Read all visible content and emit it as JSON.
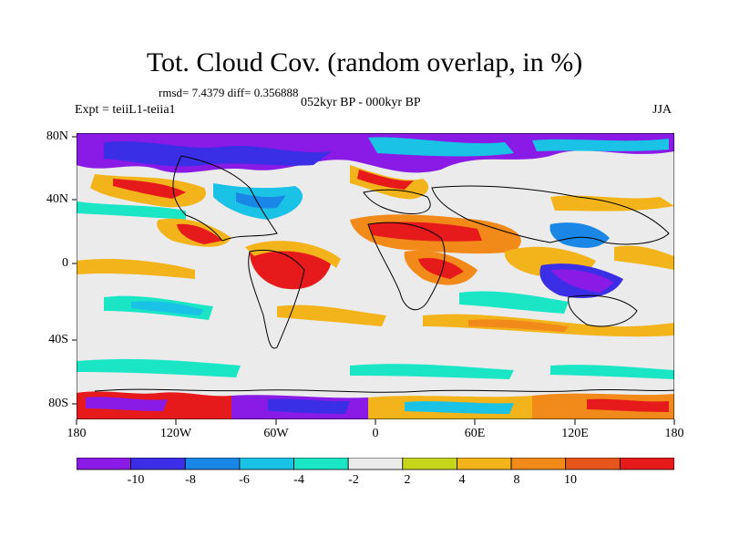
{
  "title": "Tot. Cloud Cov. (random overlap, in %)",
  "stats": "rmsd= 7.4379 diff= 0.356888",
  "experiment": "Expt = teiiL1-teiia1",
  "period": "052kyr BP - 000kyr BP",
  "season": "JJA",
  "axes": {
    "x_ticks": [
      "180",
      "120W",
      "60W",
      "0",
      "60E",
      "120E",
      "180"
    ],
    "y_ticks": [
      "80N",
      "40N",
      "0",
      "40S",
      "80S"
    ]
  },
  "colorbar": {
    "labels": [
      "-10",
      "-8",
      "-6",
      "-4",
      "-2",
      "2",
      "4",
      "8",
      "10"
    ],
    "colors": [
      "#8a1ae6",
      "#3a2ee6",
      "#1a86e6",
      "#1ac2e6",
      "#1ae6c6",
      "#ebebeb",
      "#c6d61a",
      "#f2b41a",
      "#f28a1a",
      "#e6551a",
      "#e61a1a"
    ]
  }
}
